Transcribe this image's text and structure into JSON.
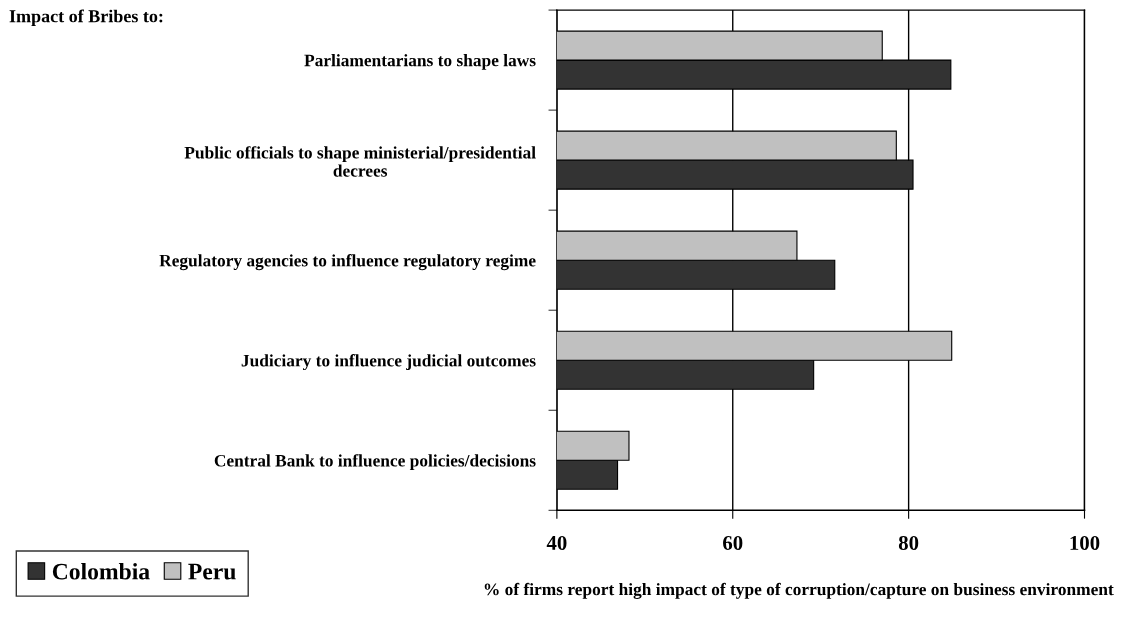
{
  "chart_data": {
    "type": "bar",
    "orientation": "horizontal",
    "title": "Impact of Bribes to:",
    "xlabel": "% of firms report high impact of type of corruption/capture on business environment",
    "categories": [
      "Parliamentarians to shape laws",
      "Public officials to shape ministerial/presidential\ndecrees",
      "Regulatory agencies to influence regulatory regime",
      "Judiciary to influence judicial outcomes",
      "Central Bank to influence policies/decisions"
    ],
    "series": [
      {
        "name": "Colombia",
        "color": "#333333",
        "values": [
          84.8,
          80.5,
          71.6,
          69.2,
          46.9
        ]
      },
      {
        "name": "Peru",
        "color": "#c0c0c0",
        "values": [
          77.0,
          78.6,
          67.3,
          84.9,
          48.2
        ]
      }
    ],
    "xlim": [
      40,
      100
    ],
    "xticks": [
      40,
      60,
      80,
      100
    ],
    "grid": "x",
    "legend": "bottom left"
  }
}
